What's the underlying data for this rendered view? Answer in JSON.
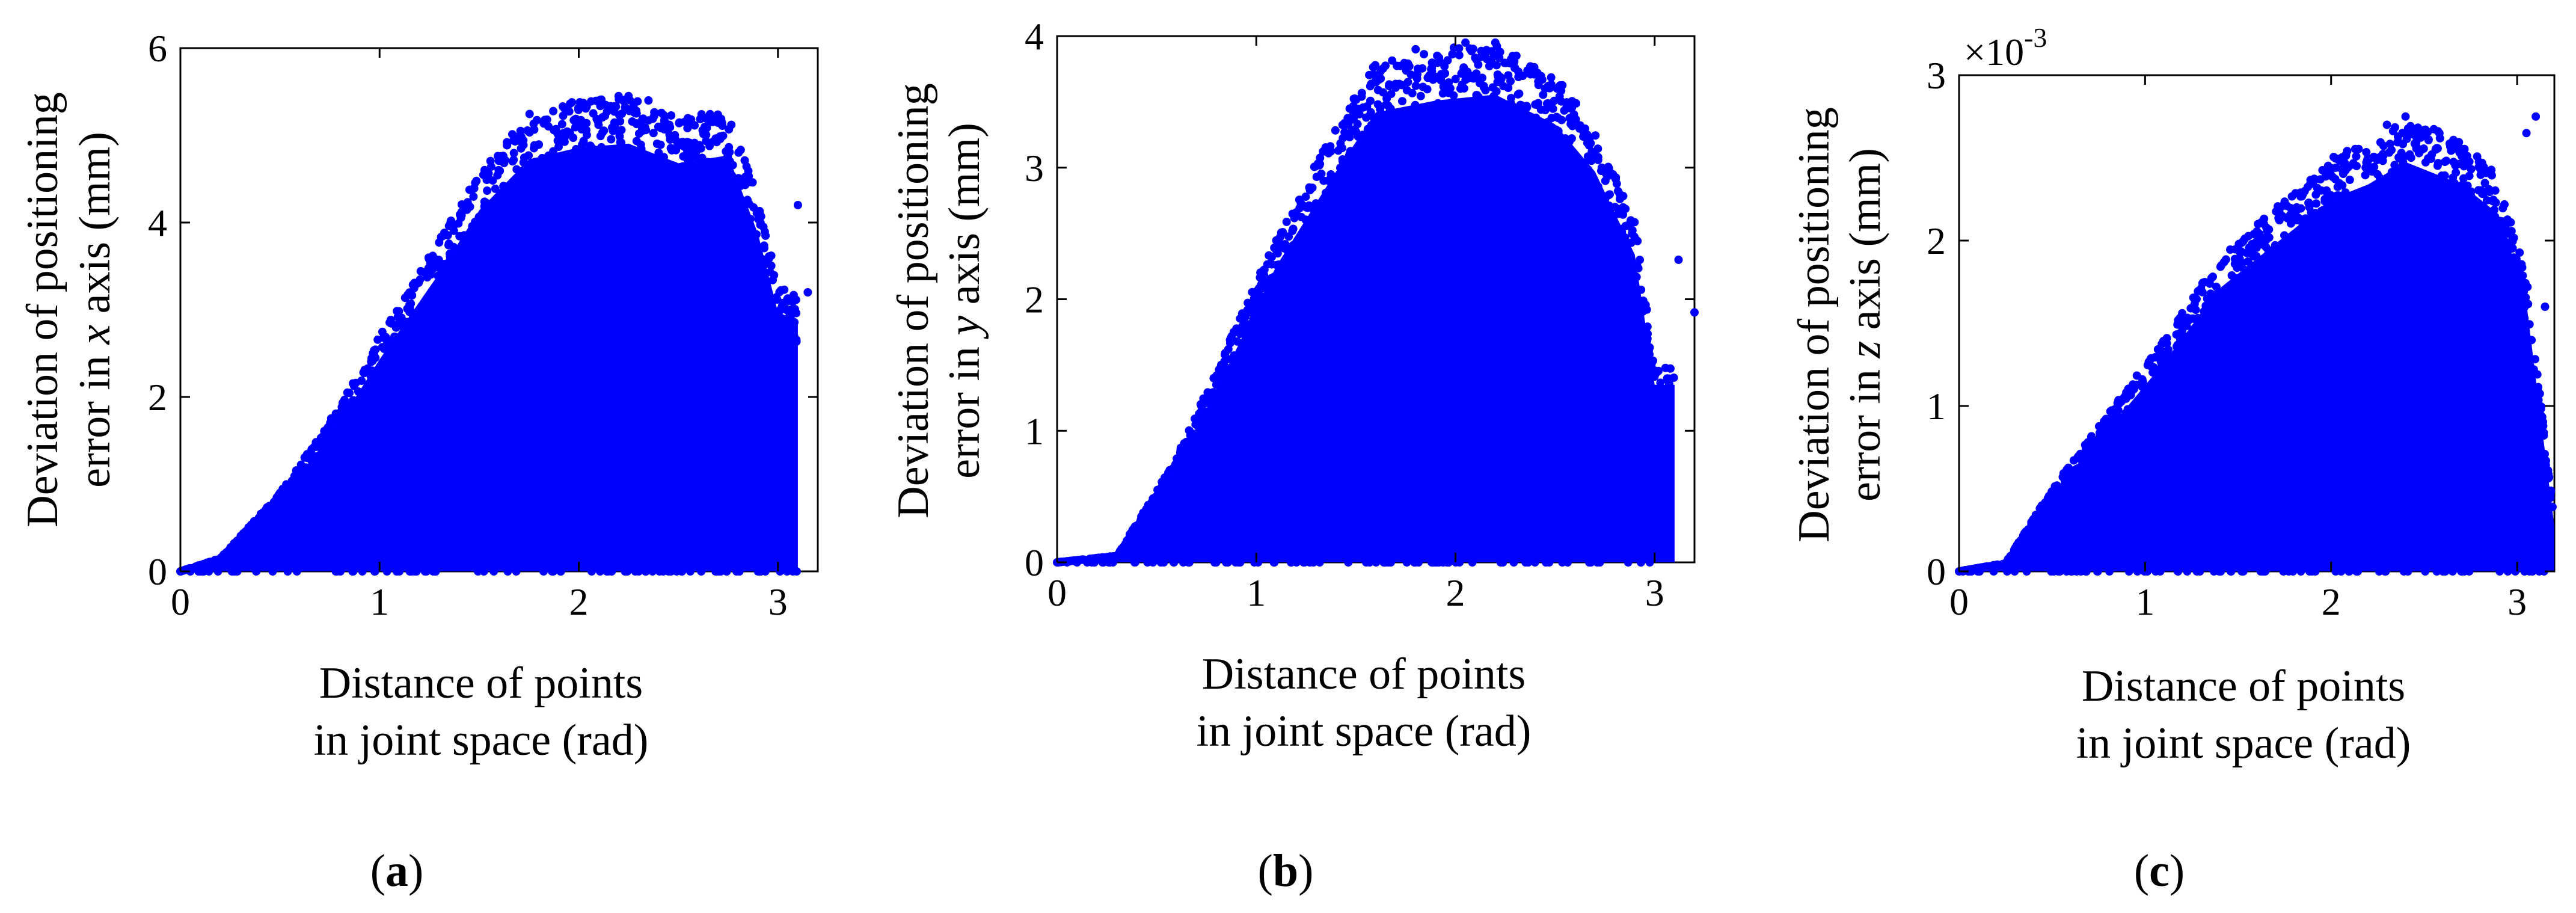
{
  "panels": [
    {
      "caption_letter": "a",
      "ylabel_line1": "Deviation of positioning",
      "ylabel_line2_pre": "error in ",
      "ylabel_axis": "x",
      "ylabel_line2_post": " axis (mm)",
      "xlabel_line1": "Distance of points",
      "xlabel_line2": "in joint space (rad)",
      "xticks": [
        "0",
        "1",
        "2",
        "3"
      ],
      "yticks": [
        "0",
        "2",
        "4",
        "6"
      ],
      "exponent": ""
    },
    {
      "caption_letter": "b",
      "ylabel_line1": "Deviation of positioning",
      "ylabel_line2_pre": "error in ",
      "ylabel_axis": "y",
      "ylabel_line2_post": " axis (mm)",
      "xlabel_line1": "Distance of points",
      "xlabel_line2": "in joint space (rad)",
      "xticks": [
        "0",
        "1",
        "2",
        "3"
      ],
      "yticks": [
        "0",
        "1",
        "2",
        "3",
        "4"
      ],
      "exponent": ""
    },
    {
      "caption_letter": "c",
      "ylabel_line1": "Deviation of positioning",
      "ylabel_line2_pre": "error in ",
      "ylabel_axis": "z",
      "ylabel_line2_post": " axis (mm)",
      "xlabel_line1": "Distance of points",
      "xlabel_line2": "in joint space (rad)",
      "xticks": [
        "0",
        "1",
        "2",
        "3"
      ],
      "yticks": [
        "0",
        "1",
        "2",
        "3"
      ],
      "exponent": "×10"
    }
  ],
  "chart_data": [
    {
      "type": "scatter",
      "marker_color": "#0000ff",
      "xlim": [
        0,
        3.2
      ],
      "ylim": [
        0,
        6
      ],
      "envelope": {
        "x": [
          0,
          0.2,
          0.5,
          0.8,
          1.0,
          1.3,
          1.5,
          1.75,
          2.0,
          2.25,
          2.5,
          2.75,
          2.9,
          3.0,
          3.1
        ],
        "y": [
          0,
          0.15,
          0.9,
          1.9,
          2.7,
          3.8,
          4.6,
          5.25,
          5.4,
          5.45,
          5.2,
          5.3,
          4.3,
          3.3,
          3.2
        ]
      },
      "series": [
        {
          "x": [
            0.0,
            0.05,
            0.1,
            0.2,
            3.15,
            3.1,
            3.05,
            2.98,
            2.95,
            2.2,
            2.25,
            2.35
          ],
          "y": [
            0.0,
            0.0,
            0.0,
            0.1,
            3.2,
            4.2,
            0.6,
            0.9,
            1.8,
            5.45,
            5.45,
            5.4
          ]
        }
      ]
    },
    {
      "type": "scatter",
      "marker_color": "#0000ff",
      "xlim": [
        0,
        3.2
      ],
      "ylim": [
        0,
        4
      ],
      "envelope": {
        "x": [
          0,
          0.3,
          0.6,
          0.9,
          1.1,
          1.4,
          1.6,
          1.9,
          2.2,
          2.5,
          2.7,
          2.9,
          3.0,
          3.1
        ],
        "y": [
          0,
          0.05,
          0.8,
          1.8,
          2.5,
          3.3,
          3.8,
          3.9,
          3.95,
          3.7,
          3.3,
          2.6,
          1.5,
          1.5
        ]
      },
      "series": [
        {
          "x": [
            0.0,
            0.05,
            0.1,
            3.2,
            3.12,
            2.2,
            2.05,
            1.8
          ],
          "y": [
            0.0,
            0.0,
            0.0,
            1.9,
            2.3,
            3.95,
            3.95,
            3.9
          ]
        }
      ]
    },
    {
      "type": "scatter",
      "marker_color": "#0000ff",
      "xlim": [
        0,
        3.2
      ],
      "ylim": [
        0,
        3
      ],
      "exponent": -3,
      "envelope": {
        "x": [
          0,
          0.25,
          0.5,
          0.8,
          1.1,
          1.4,
          1.7,
          2.0,
          2.2,
          2.4,
          2.7,
          2.9,
          3.05,
          3.2
        ],
        "y": [
          0,
          0.05,
          0.5,
          0.95,
          1.4,
          1.9,
          2.2,
          2.5,
          2.6,
          2.75,
          2.6,
          2.4,
          1.8,
          0.3
        ]
      },
      "series": [
        {
          "x": [
            0.0,
            0.05,
            0.1,
            3.15,
            3.1,
            2.4,
            2.3,
            3.05
          ],
          "y": [
            0.0,
            0.0,
            0.0,
            1.6,
            2.75,
            2.75,
            2.7,
            2.65
          ]
        }
      ]
    }
  ]
}
